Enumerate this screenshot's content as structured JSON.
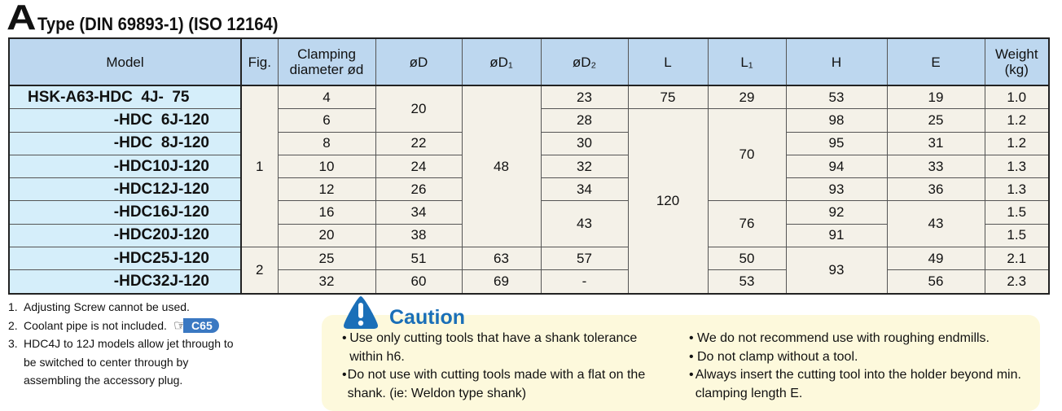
{
  "title": {
    "letter": "A",
    "subtitle": "Type (DIN 69893-1) (ISO 12164)"
  },
  "table": {
    "headers": [
      "Model",
      "Fig.",
      "Clamping diameter ød",
      "øD",
      "øD₁",
      "øD₂",
      "L",
      "L₁",
      "H",
      "E",
      "Weight (kg)"
    ],
    "rows": [
      [
        {
          "v": "HSK-A63-HDC  4J-  75"
        },
        {
          "v": "1",
          "span": 7
        },
        {
          "v": "4"
        },
        {
          "v": "20",
          "span": 2
        },
        {
          "v": "48",
          "span": 7
        },
        {
          "v": "23"
        },
        {
          "v": "75"
        },
        {
          "v": "29"
        },
        {
          "v": "53"
        },
        {
          "v": "19"
        },
        {
          "v": "1.0"
        }
      ],
      [
        {
          "v": "-HDC  6J-120"
        },
        {
          "v": "6"
        },
        {
          "v": "28"
        },
        {
          "v": "120",
          "span": 8
        },
        {
          "v": "70",
          "span": 4
        },
        {
          "v": "98"
        },
        {
          "v": "25"
        },
        {
          "v": "1.2"
        }
      ],
      [
        {
          "v": "-HDC  8J-120"
        },
        {
          "v": "8"
        },
        {
          "v": "22"
        },
        {
          "v": "30"
        },
        {
          "v": "95"
        },
        {
          "v": "31"
        },
        {
          "v": "1.2"
        }
      ],
      [
        {
          "v": "-HDC10J-120"
        },
        {
          "v": "10"
        },
        {
          "v": "24"
        },
        {
          "v": "32"
        },
        {
          "v": "94"
        },
        {
          "v": "33"
        },
        {
          "v": "1.3"
        }
      ],
      [
        {
          "v": "-HDC12J-120"
        },
        {
          "v": "12"
        },
        {
          "v": "26"
        },
        {
          "v": "34"
        },
        {
          "v": "93"
        },
        {
          "v": "36"
        },
        {
          "v": "1.3"
        }
      ],
      [
        {
          "v": "-HDC16J-120"
        },
        {
          "v": "16"
        },
        {
          "v": "34"
        },
        {
          "v": "43",
          "span": 2
        },
        {
          "v": "76",
          "span": 2
        },
        {
          "v": "92"
        },
        {
          "v": "43",
          "span": 2
        },
        {
          "v": "1.5"
        }
      ],
      [
        {
          "v": "-HDC20J-120"
        },
        {
          "v": "20"
        },
        {
          "v": "38"
        },
        {
          "v": "91"
        },
        {
          "v": "1.5"
        }
      ],
      [
        {
          "v": "-HDC25J-120"
        },
        {
          "v": "2",
          "span": 2
        },
        {
          "v": "25"
        },
        {
          "v": "51"
        },
        {
          "v": "63"
        },
        {
          "v": "57"
        },
        {
          "v": "50"
        },
        {
          "v": "93",
          "span": 2
        },
        {
          "v": "49"
        },
        {
          "v": "2.1"
        }
      ],
      [
        {
          "v": "-HDC32J-120"
        },
        {
          "v": "32"
        },
        {
          "v": "60"
        },
        {
          "v": "69"
        },
        {
          "v": "-"
        },
        {
          "v": "53"
        },
        {
          "v": "56"
        },
        {
          "v": "2.3"
        }
      ]
    ]
  },
  "notes": [
    {
      "num": "1.",
      "text": "Adjusting Screw cannot be used."
    },
    {
      "num": "2.",
      "text": "Coolant pipe is not included.",
      "ref": "C65"
    },
    {
      "num": "3.",
      "text": "HDC4J to 12J models allow jet through to be switched to center through by assembling the accessory plug."
    }
  ],
  "caution": {
    "title": "Caution",
    "left": [
      "Use only cutting tools that have a shank tolerance within h6.",
      "Do not use with cutting tools made with a flat on the shank. (ie: Weldon type shank)"
    ],
    "right": [
      "We do not recommend use with roughing endmills.",
      "Do not clamp without a tool.",
      "Always insert the cutting tool into the holder beyond min. clamping length E."
    ]
  },
  "colors": {
    "header": "#bdd7ef",
    "model_col": "#d5eefa",
    "cell": "#f4f1e8",
    "caution_bg": "#fdf9dc",
    "caution_title": "#1a6fb8",
    "badge": "#3a78c2"
  }
}
